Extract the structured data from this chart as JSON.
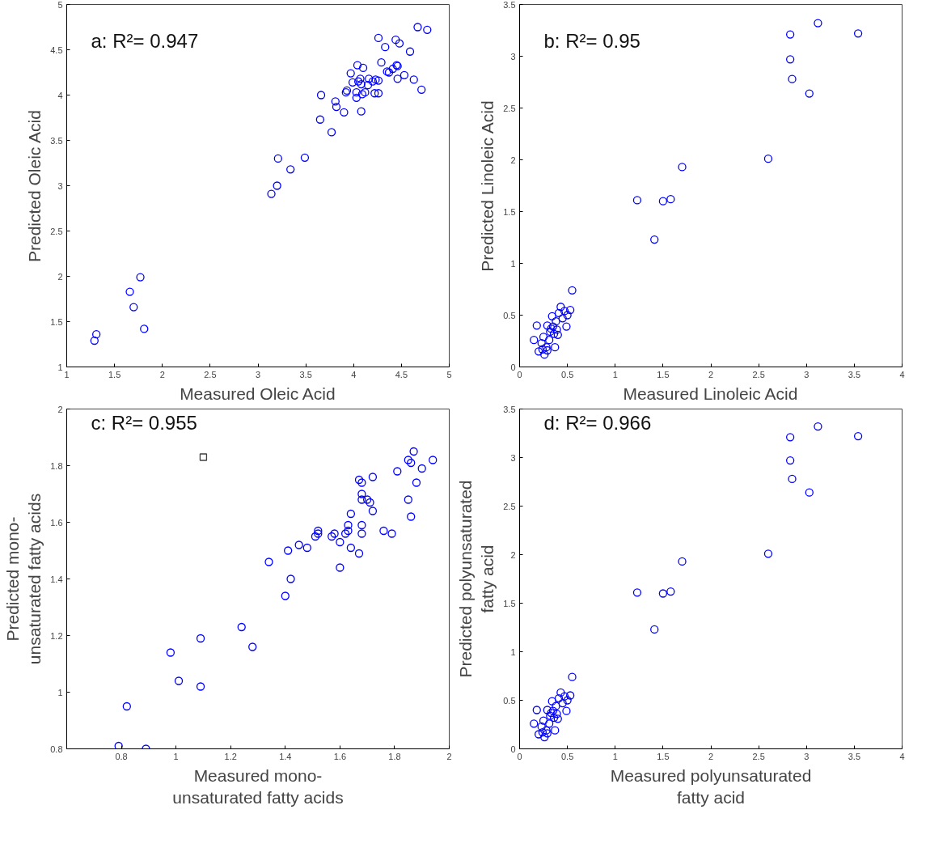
{
  "chart_data": [
    {
      "type": "scatter",
      "xlabel": "Measured Oleic Acid",
      "ylabel": "Predicted Oleic Acid",
      "annotations": [
        "a: R²= 0.947"
      ],
      "marker": "circle",
      "grid": false,
      "xlim": [
        1,
        5
      ],
      "ylim": [
        1,
        5
      ],
      "xticks": [
        1,
        1.5,
        2,
        2.5,
        3,
        3.5,
        4,
        4.5,
        5
      ],
      "yticks": [
        1,
        1.5,
        2,
        2.5,
        3,
        3.5,
        4,
        4.5,
        5
      ],
      "series": [
        {
          "color": "#0000ff",
          "x": [
            1.29,
            1.31,
            1.66,
            1.7,
            1.77,
            1.81,
            3.14,
            3.2,
            3.21,
            3.34,
            3.49,
            3.65,
            3.66,
            3.77,
            3.81,
            3.82,
            3.9,
            3.92,
            3.93,
            3.97,
            3.99,
            4.03,
            4.03,
            4.04,
            4.05,
            4.07,
            4.08,
            4.08,
            4.09,
            4.1,
            4.12,
            4.16,
            4.15,
            4.2,
            4.22,
            4.23,
            4.26,
            4.26,
            4.26,
            4.29,
            4.33,
            4.35,
            4.37,
            4.41,
            4.44,
            4.45,
            4.46,
            4.46,
            4.48,
            4.53,
            4.59,
            4.63,
            4.67,
            4.71,
            4.77
          ],
          "values": [
            1.29,
            1.36,
            1.83,
            1.66,
            1.99,
            1.42,
            2.91,
            3.0,
            3.3,
            3.18,
            3.31,
            3.73,
            4.0,
            3.59,
            3.93,
            3.87,
            3.81,
            4.03,
            4.05,
            4.24,
            4.14,
            3.97,
            4.03,
            4.33,
            4.15,
            4.18,
            4.12,
            3.82,
            4.01,
            4.3,
            4.03,
            4.18,
            4.11,
            4.15,
            4.02,
            4.17,
            4.16,
            4.02,
            4.63,
            4.36,
            4.53,
            4.26,
            4.25,
            4.29,
            4.61,
            4.33,
            4.32,
            4.18,
            4.57,
            4.22,
            4.48,
            4.17,
            4.75,
            4.06,
            4.72
          ]
        }
      ]
    },
    {
      "type": "scatter",
      "xlabel": "Measured Linoleic Acid",
      "ylabel": "Predicted Linoleic Acid",
      "annotations": [
        "b: R²= 0.95"
      ],
      "marker": "circle",
      "grid": false,
      "xlim": [
        0,
        4
      ],
      "ylim": [
        0,
        3.5
      ],
      "xticks": [
        0,
        0.5,
        1,
        1.5,
        2,
        2.5,
        3,
        3.5,
        4
      ],
      "yticks": [
        0,
        0.5,
        1,
        1.5,
        2,
        2.5,
        3,
        3.5
      ],
      "series": [
        {
          "color": "#0000ff",
          "x": [
            0.15,
            0.18,
            0.2,
            0.23,
            0.25,
            0.26,
            0.28,
            0.29,
            0.31,
            0.32,
            0.34,
            0.35,
            0.37,
            0.38,
            0.4,
            0.41,
            0.43,
            0.45,
            0.47,
            0.49,
            0.5,
            0.53,
            0.55,
            0.33,
            0.24,
            0.29,
            0.39,
            0.36,
            1.23,
            1.41,
            1.5,
            1.58,
            1.7,
            2.6,
            2.83,
            2.83,
            2.85,
            3.03,
            3.12,
            3.54
          ],
          "values": [
            0.26,
            0.4,
            0.15,
            0.23,
            0.29,
            0.12,
            0.19,
            0.4,
            0.26,
            0.34,
            0.49,
            0.39,
            0.19,
            0.44,
            0.31,
            0.52,
            0.58,
            0.47,
            0.54,
            0.39,
            0.5,
            0.55,
            0.74,
            0.37,
            0.17,
            0.16,
            0.36,
            0.32,
            1.61,
            1.23,
            1.6,
            1.62,
            1.93,
            2.01,
            3.21,
            2.97,
            2.78,
            2.64,
            3.32,
            3.22
          ]
        }
      ]
    },
    {
      "type": "scatter",
      "xlabel": "Measured mono-\nunsaturated fatty acids",
      "ylabel": "Predicted mono-\nunsaturated fatty acids",
      "annotations": [
        "c: R²= 0.955"
      ],
      "marker": "circle",
      "grid": false,
      "xlim": [
        0.6,
        2
      ],
      "ylim": [
        0.8,
        2
      ],
      "xticks": [
        0.8,
        1,
        1.2,
        1.4,
        1.6,
        1.8,
        2
      ],
      "yticks": [
        0.8,
        1,
        1.2,
        1.4,
        1.6,
        1.8,
        2
      ],
      "series": [
        {
          "color": "#0000ff",
          "x": [
            0.79,
            0.82,
            0.89,
            0.98,
            1.01,
            1.09,
            1.09,
            1.24,
            1.28,
            1.34,
            1.4,
            1.41,
            1.42,
            1.45,
            1.48,
            1.51,
            1.52,
            1.52,
            1.57,
            1.58,
            1.6,
            1.6,
            1.62,
            1.63,
            1.63,
            1.64,
            1.64,
            1.67,
            1.67,
            1.68,
            1.68,
            1.68,
            1.68,
            1.68,
            1.7,
            1.71,
            1.72,
            1.72,
            1.76,
            1.79,
            1.81,
            1.85,
            1.85,
            1.86,
            1.86,
            1.87,
            1.88,
            1.9,
            1.94
          ],
          "values": [
            0.81,
            0.95,
            0.8,
            1.14,
            1.04,
            1.19,
            1.02,
            1.23,
            1.16,
            1.46,
            1.34,
            1.5,
            1.4,
            1.52,
            1.51,
            1.55,
            1.56,
            1.57,
            1.55,
            1.56,
            1.53,
            1.44,
            1.56,
            1.57,
            1.59,
            1.51,
            1.63,
            1.75,
            1.49,
            1.56,
            1.59,
            1.7,
            1.74,
            1.68,
            1.68,
            1.67,
            1.76,
            1.64,
            1.57,
            1.56,
            1.78,
            1.68,
            1.82,
            1.81,
            1.62,
            1.85,
            1.74,
            1.79,
            1.82
          ]
        },
        {
          "color": "#404040",
          "marker": "square",
          "x": [
            1.1
          ],
          "values": [
            1.83
          ]
        }
      ]
    },
    {
      "type": "scatter",
      "xlabel": "Measured polyunsaturated\nfatty acid",
      "ylabel": "Predicted polyunsaturated\nfatty acid",
      "annotations": [
        "d: R²= 0.966"
      ],
      "marker": "circle",
      "grid": false,
      "xlim": [
        0,
        4
      ],
      "ylim": [
        0,
        3.5
      ],
      "xticks": [
        0,
        0.5,
        1,
        1.5,
        2,
        2.5,
        3,
        3.5,
        4
      ],
      "yticks": [
        0,
        0.5,
        1,
        1.5,
        2,
        2.5,
        3,
        3.5
      ],
      "series": [
        {
          "color": "#0000ff",
          "x": [
            0.15,
            0.18,
            0.2,
            0.23,
            0.25,
            0.26,
            0.28,
            0.29,
            0.31,
            0.32,
            0.34,
            0.35,
            0.37,
            0.38,
            0.4,
            0.41,
            0.43,
            0.45,
            0.47,
            0.49,
            0.5,
            0.53,
            0.55,
            0.33,
            0.24,
            0.29,
            0.39,
            0.36,
            1.23,
            1.41,
            1.5,
            1.58,
            1.7,
            2.6,
            2.83,
            2.83,
            2.85,
            3.03,
            3.12,
            3.54
          ],
          "values": [
            0.26,
            0.4,
            0.15,
            0.23,
            0.29,
            0.12,
            0.19,
            0.4,
            0.26,
            0.34,
            0.49,
            0.39,
            0.19,
            0.44,
            0.31,
            0.52,
            0.58,
            0.47,
            0.54,
            0.39,
            0.5,
            0.55,
            0.74,
            0.37,
            0.17,
            0.16,
            0.36,
            0.32,
            1.61,
            1.23,
            1.6,
            1.62,
            1.93,
            2.01,
            3.21,
            2.97,
            2.78,
            2.64,
            3.32,
            3.22
          ]
        }
      ]
    }
  ]
}
